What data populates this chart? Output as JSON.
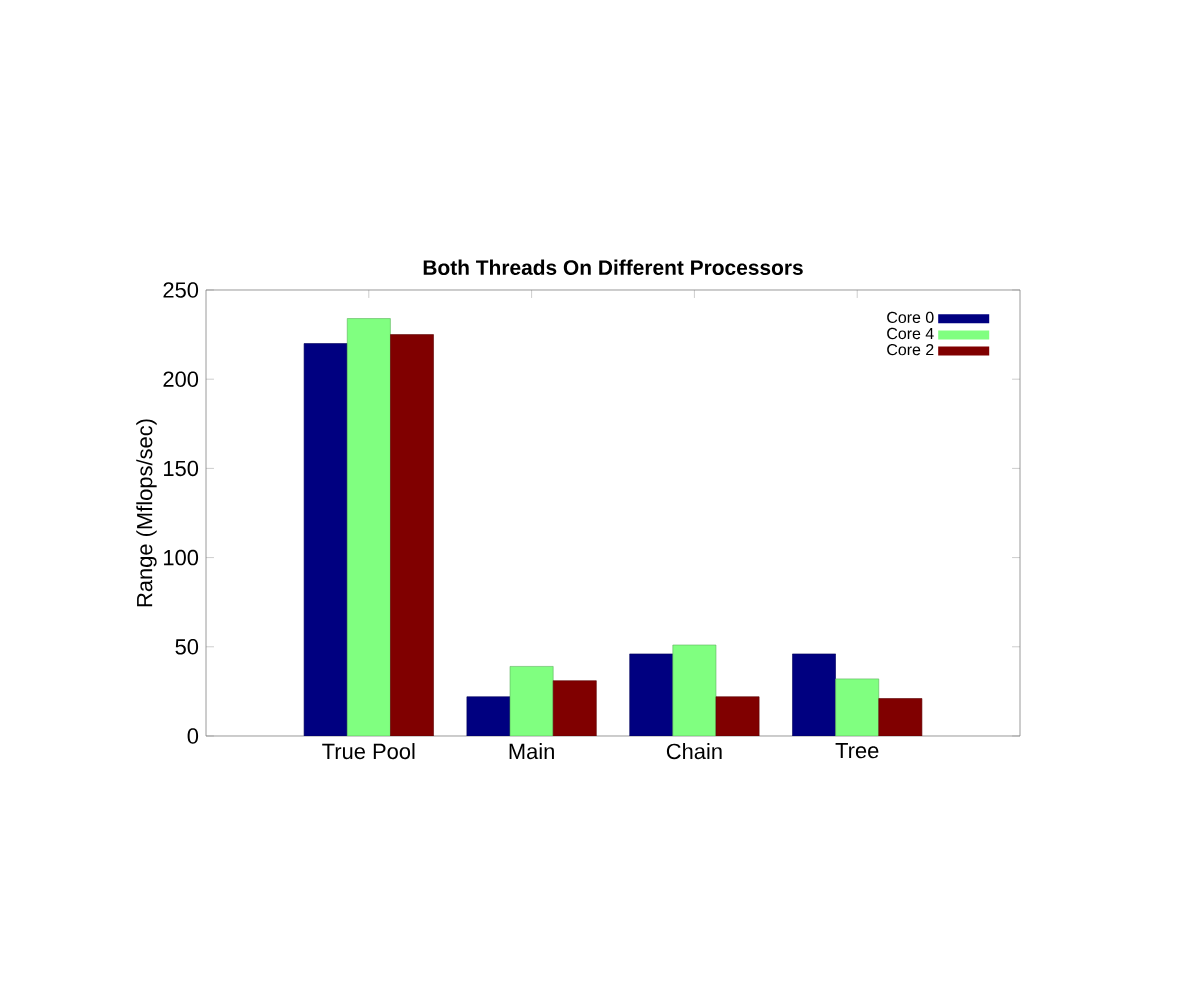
{
  "chart_data": {
    "type": "bar",
    "title": "Both Threads On Different Processors",
    "ylabel": "Range (Mflops/sec)",
    "categories": [
      "True Pool",
      "Main",
      "Chain",
      "Tree"
    ],
    "series": [
      {
        "name": "Core 0",
        "color": "#000080",
        "values": [
          220,
          22,
          46,
          46
        ]
      },
      {
        "name": "Core 4",
        "color": "#80ff80",
        "values": [
          234,
          39,
          51,
          32
        ]
      },
      {
        "name": "Core 2",
        "color": "#800000",
        "values": [
          225,
          31,
          22,
          21
        ]
      }
    ],
    "ylim": [
      0,
      250
    ],
    "yticks": [
      0,
      50,
      100,
      150,
      200,
      250
    ],
    "legend": "top right"
  }
}
